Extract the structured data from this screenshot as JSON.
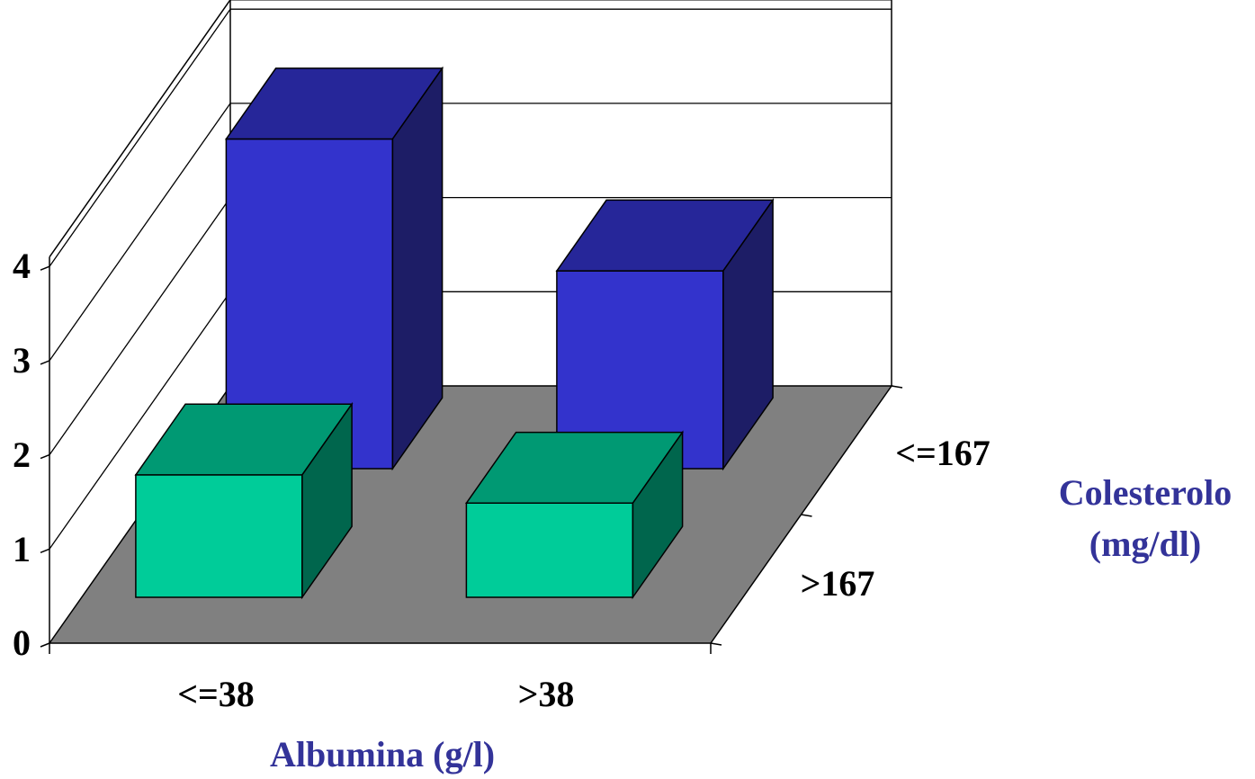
{
  "chart_data": {
    "type": "bar",
    "subtype": "3d-column",
    "categories": [
      "<=38",
      ">38"
    ],
    "depth_categories": [
      "<=167",
      ">167"
    ],
    "series": [
      {
        "depth_label": "<=167",
        "values": [
          3.5,
          2.1
        ]
      },
      {
        "depth_label": ">167",
        "values": [
          1.3,
          1.0
        ]
      }
    ],
    "y_ticks": [
      "0",
      "1",
      "2",
      "3",
      "4"
    ],
    "ylim": [
      0,
      4
    ],
    "xlabel": "Albumina (g/l)",
    "depth_label": [
      "Colesterolo",
      "(mg/dl)"
    ],
    "title": "",
    "grid": true,
    "colors": {
      "back_series_front": "#3333CC",
      "back_series_top": "#262699",
      "back_series_side": "#1D1D66",
      "front_series_front": "#00CC99",
      "front_series_top": "#009973",
      "front_series_side": "#00664D",
      "floor": "#808080",
      "axis_title": "#333399"
    }
  }
}
